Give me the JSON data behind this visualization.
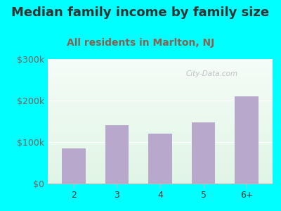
{
  "title": "Median family income by family size",
  "subtitle": "All residents in Marlton, NJ",
  "categories": [
    "2",
    "3",
    "4",
    "5",
    "6+"
  ],
  "values": [
    85000,
    140000,
    120000,
    148000,
    210000
  ],
  "bar_color": "#b8a8cc",
  "title_color": "#333333",
  "subtitle_color": "#8B6050",
  "outer_bg_color": "#00FFFF",
  "ylabel_color": "#7a6060",
  "xlabel_color": "#333333",
  "ylim": [
    0,
    300000
  ],
  "yticks": [
    0,
    100000,
    200000,
    300000
  ],
  "ytick_labels": [
    "$0",
    "$100k",
    "$200k",
    "$300k"
  ],
  "title_fontsize": 13,
  "subtitle_fontsize": 10,
  "tick_fontsize": 9,
  "watermark": "City-Data.com"
}
